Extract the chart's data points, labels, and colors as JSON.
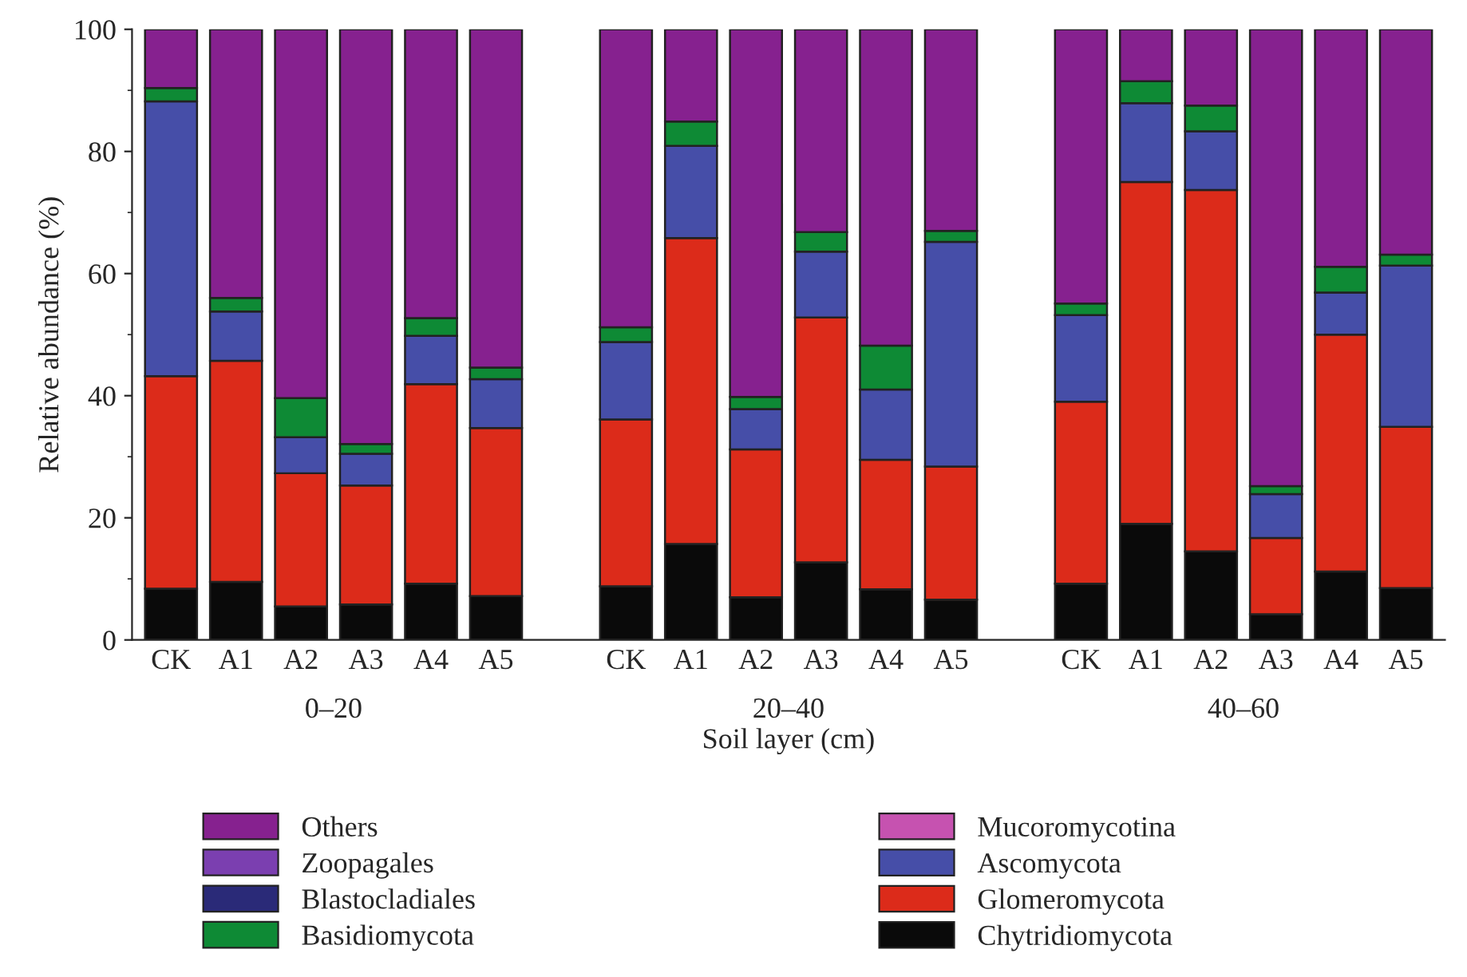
{
  "chart_data": {
    "type": "bar",
    "stacked": true,
    "xlabel": "Soil layer (cm)",
    "ylabel": "Relative abundance (%)",
    "categories": [
      "CK",
      "A1",
      "A2",
      "A3",
      "A4",
      "A5",
      null,
      "CK",
      "A1",
      "A2",
      "A3",
      "A4",
      "A5",
      null,
      "CK",
      "A1",
      "A2",
      "A3",
      "A4",
      "A5"
    ],
    "annotations": [
      "0–20",
      "20–40",
      "40–60"
    ],
    "ylim": [
      0,
      100
    ],
    "yticks": [
      0,
      20,
      40,
      60,
      80,
      100
    ],
    "legend": "bottom",
    "series": [
      {
        "name": "Chytridiomycota",
        "color": "#0a0a0a",
        "values": [
          8.4,
          9.5,
          5.5,
          5.8,
          9.2,
          7.2,
          null,
          8.8,
          15.7,
          7.0,
          12.7,
          8.3,
          6.6,
          null,
          9.2,
          19.0,
          14.5,
          4.2,
          11.2,
          8.5
        ]
      },
      {
        "name": "Glomeromycota",
        "color": "#dc2b1a",
        "values": [
          34.8,
          36.2,
          21.8,
          19.5,
          32.7,
          27.5,
          null,
          27.3,
          50.1,
          24.2,
          40.1,
          21.2,
          21.8,
          null,
          29.8,
          56.0,
          59.2,
          12.5,
          38.8,
          26.4
        ]
      },
      {
        "name": "Ascomycota",
        "color": "#464ea8",
        "values": [
          45.0,
          8.1,
          5.9,
          5.2,
          7.9,
          8.0,
          null,
          12.7,
          15.1,
          6.6,
          10.8,
          11.5,
          36.8,
          null,
          14.2,
          12.9,
          9.6,
          7.2,
          6.9,
          26.4
        ]
      },
      {
        "name": "Mucoromycotina",
        "color": "#c652b0",
        "values": [
          null,
          null,
          null,
          null,
          null,
          null,
          null,
          null,
          null,
          null,
          null,
          null,
          null,
          null,
          null,
          null,
          null,
          null,
          null,
          null
        ]
      },
      {
        "name": "Basidiomycota",
        "color": "#0e8a35",
        "values": [
          2.2,
          2.2,
          6.4,
          1.6,
          2.9,
          1.9,
          null,
          2.4,
          4.0,
          2.0,
          3.2,
          7.2,
          1.8,
          null,
          1.9,
          3.6,
          4.2,
          1.3,
          4.2,
          1.8
        ]
      },
      {
        "name": "Blastocladiales",
        "color": "#2a2a78",
        "values": [
          null,
          null,
          null,
          null,
          null,
          null,
          null,
          null,
          null,
          null,
          null,
          null,
          null,
          null,
          null,
          null,
          null,
          null,
          null,
          null
        ]
      },
      {
        "name": "Zoopagales",
        "color": "#7b3fb0",
        "values": [
          null,
          null,
          null,
          null,
          null,
          null,
          null,
          null,
          null,
          null,
          null,
          null,
          null,
          null,
          null,
          null,
          null,
          null,
          null,
          null
        ]
      },
      {
        "name": "Others",
        "color": "#86218f",
        "values": [
          9.6,
          44.0,
          60.4,
          67.9,
          47.3,
          55.4,
          null,
          48.8,
          15.1,
          60.2,
          33.2,
          51.8,
          33.0,
          null,
          44.9,
          8.5,
          12.5,
          74.8,
          38.9,
          36.9
        ]
      }
    ]
  }
}
